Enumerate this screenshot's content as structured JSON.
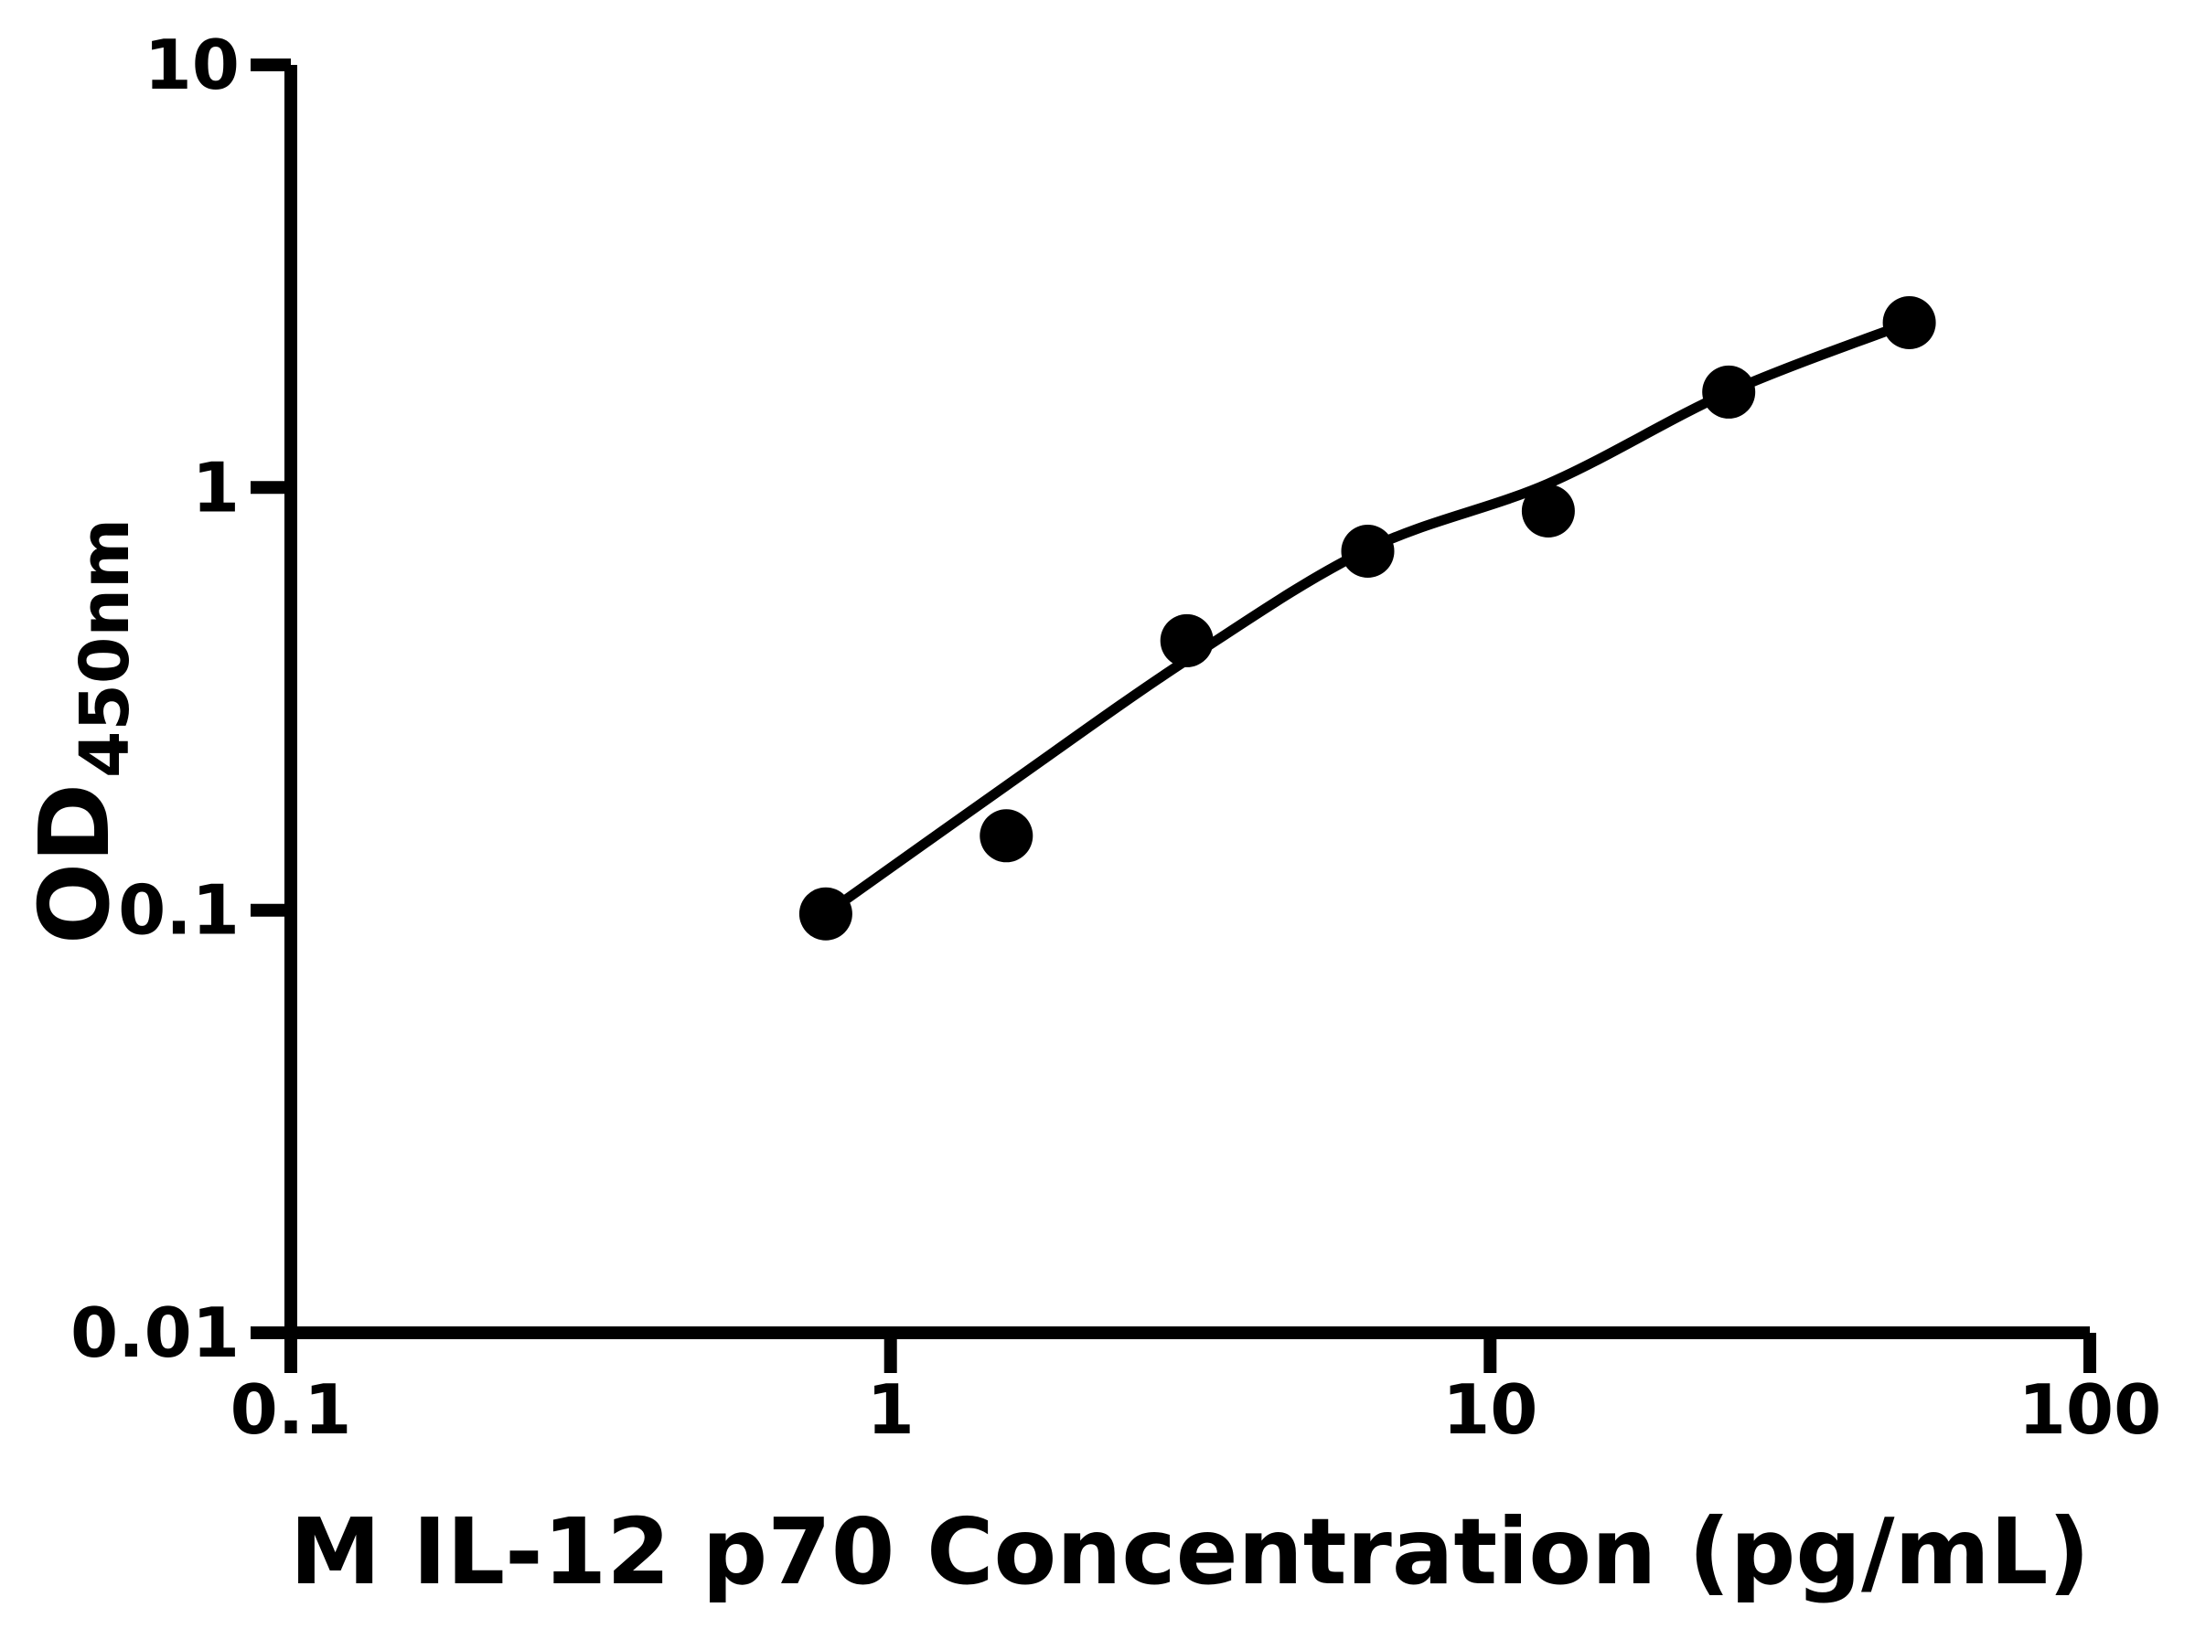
{
  "figure": {
    "background_color": "#ffffff",
    "ink_color": "#000000"
  },
  "chart_data": {
    "type": "scatter",
    "title": "",
    "xlabel": "M IL-12 p70 Concentration (pg/mL)",
    "ylabel_main": "OD",
    "ylabel_sub": "450nm",
    "x_scale": "log",
    "y_scale": "log",
    "xlim": [
      0.1,
      100
    ],
    "ylim": [
      0.01,
      10
    ],
    "grid": "off",
    "legend": "none",
    "x_ticks": [
      {
        "value": 0.1,
        "label": "0.1"
      },
      {
        "value": 1,
        "label": "1"
      },
      {
        "value": 10,
        "label": "10"
      },
      {
        "value": 100,
        "label": "100"
      }
    ],
    "y_ticks": [
      {
        "value": 0.01,
        "label": "0.01"
      },
      {
        "value": 0.1,
        "label": "0.1"
      },
      {
        "value": 1,
        "label": "1"
      },
      {
        "value": 10,
        "label": "10"
      }
    ],
    "series": [
      {
        "name": "standard-curve-points",
        "style": "filled-circle-markers",
        "x": [
          0.78,
          1.56,
          3.12,
          6.25,
          12.5,
          25,
          50
        ],
        "y": [
          0.098,
          0.15,
          0.434,
          0.707,
          0.88,
          1.682,
          2.455
        ]
      },
      {
        "name": "fit-curve",
        "style": "smooth-line",
        "x": [
          0.78,
          1.56,
          3.12,
          6.25,
          12.5,
          25,
          50
        ],
        "y": [
          0.098,
          0.197,
          0.391,
          0.714,
          1.022,
          1.682,
          2.455
        ]
      }
    ],
    "marker_color": "#000000",
    "line_color": "#000000",
    "axis_color": "#000000"
  }
}
